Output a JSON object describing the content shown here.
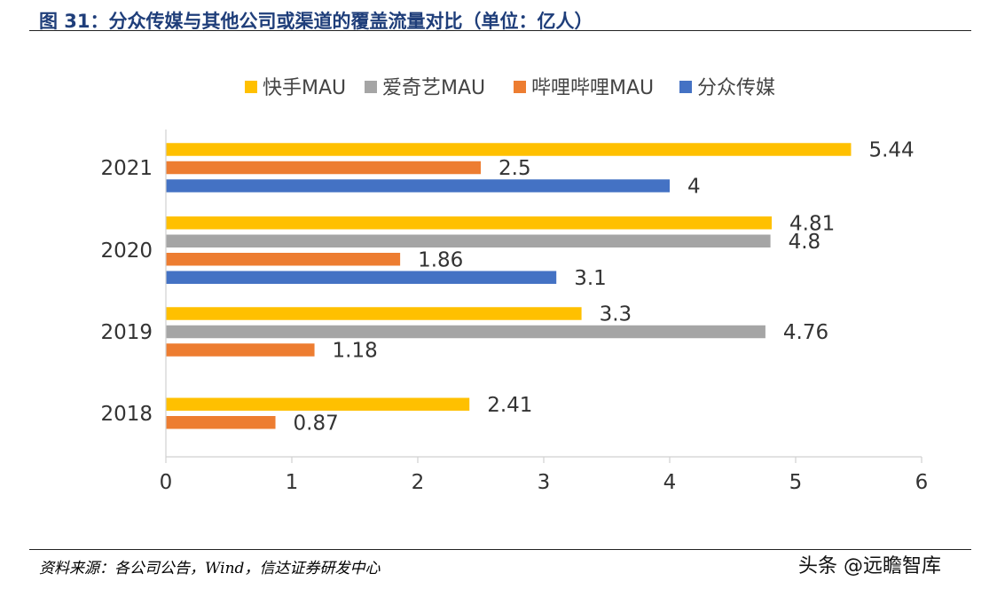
{
  "figure": {
    "title": "图 31：分众传媒与其他公司或渠道的覆盖流量对比（单位：亿人）",
    "source": "资料来源：各公司公告，Wind，信达证券研发中心",
    "watermark": "头条 @远瞻智库"
  },
  "chart_data": {
    "type": "bar",
    "orientation": "horizontal",
    "categories": [
      "2021",
      "2020",
      "2019",
      "2018"
    ],
    "series": [
      {
        "name": "快手MAU",
        "color": "#FFC000",
        "values": [
          5.44,
          4.81,
          3.3,
          2.41
        ]
      },
      {
        "name": "爱奇艺MAU",
        "color": "#A5A5A5",
        "values": [
          null,
          4.8,
          4.76,
          null
        ]
      },
      {
        "name": "哔哩哔哩MAU",
        "color": "#ED7D31",
        "values": [
          2.5,
          1.86,
          1.18,
          0.87
        ]
      },
      {
        "name": "分众传媒",
        "color": "#4472C4",
        "values": [
          4,
          3.1,
          null,
          null
        ]
      }
    ],
    "x_ticks": [
      "0",
      "1",
      "2",
      "3",
      "4",
      "5",
      "6"
    ],
    "xlim": [
      0,
      6
    ],
    "legend": "top",
    "grid": false
  }
}
